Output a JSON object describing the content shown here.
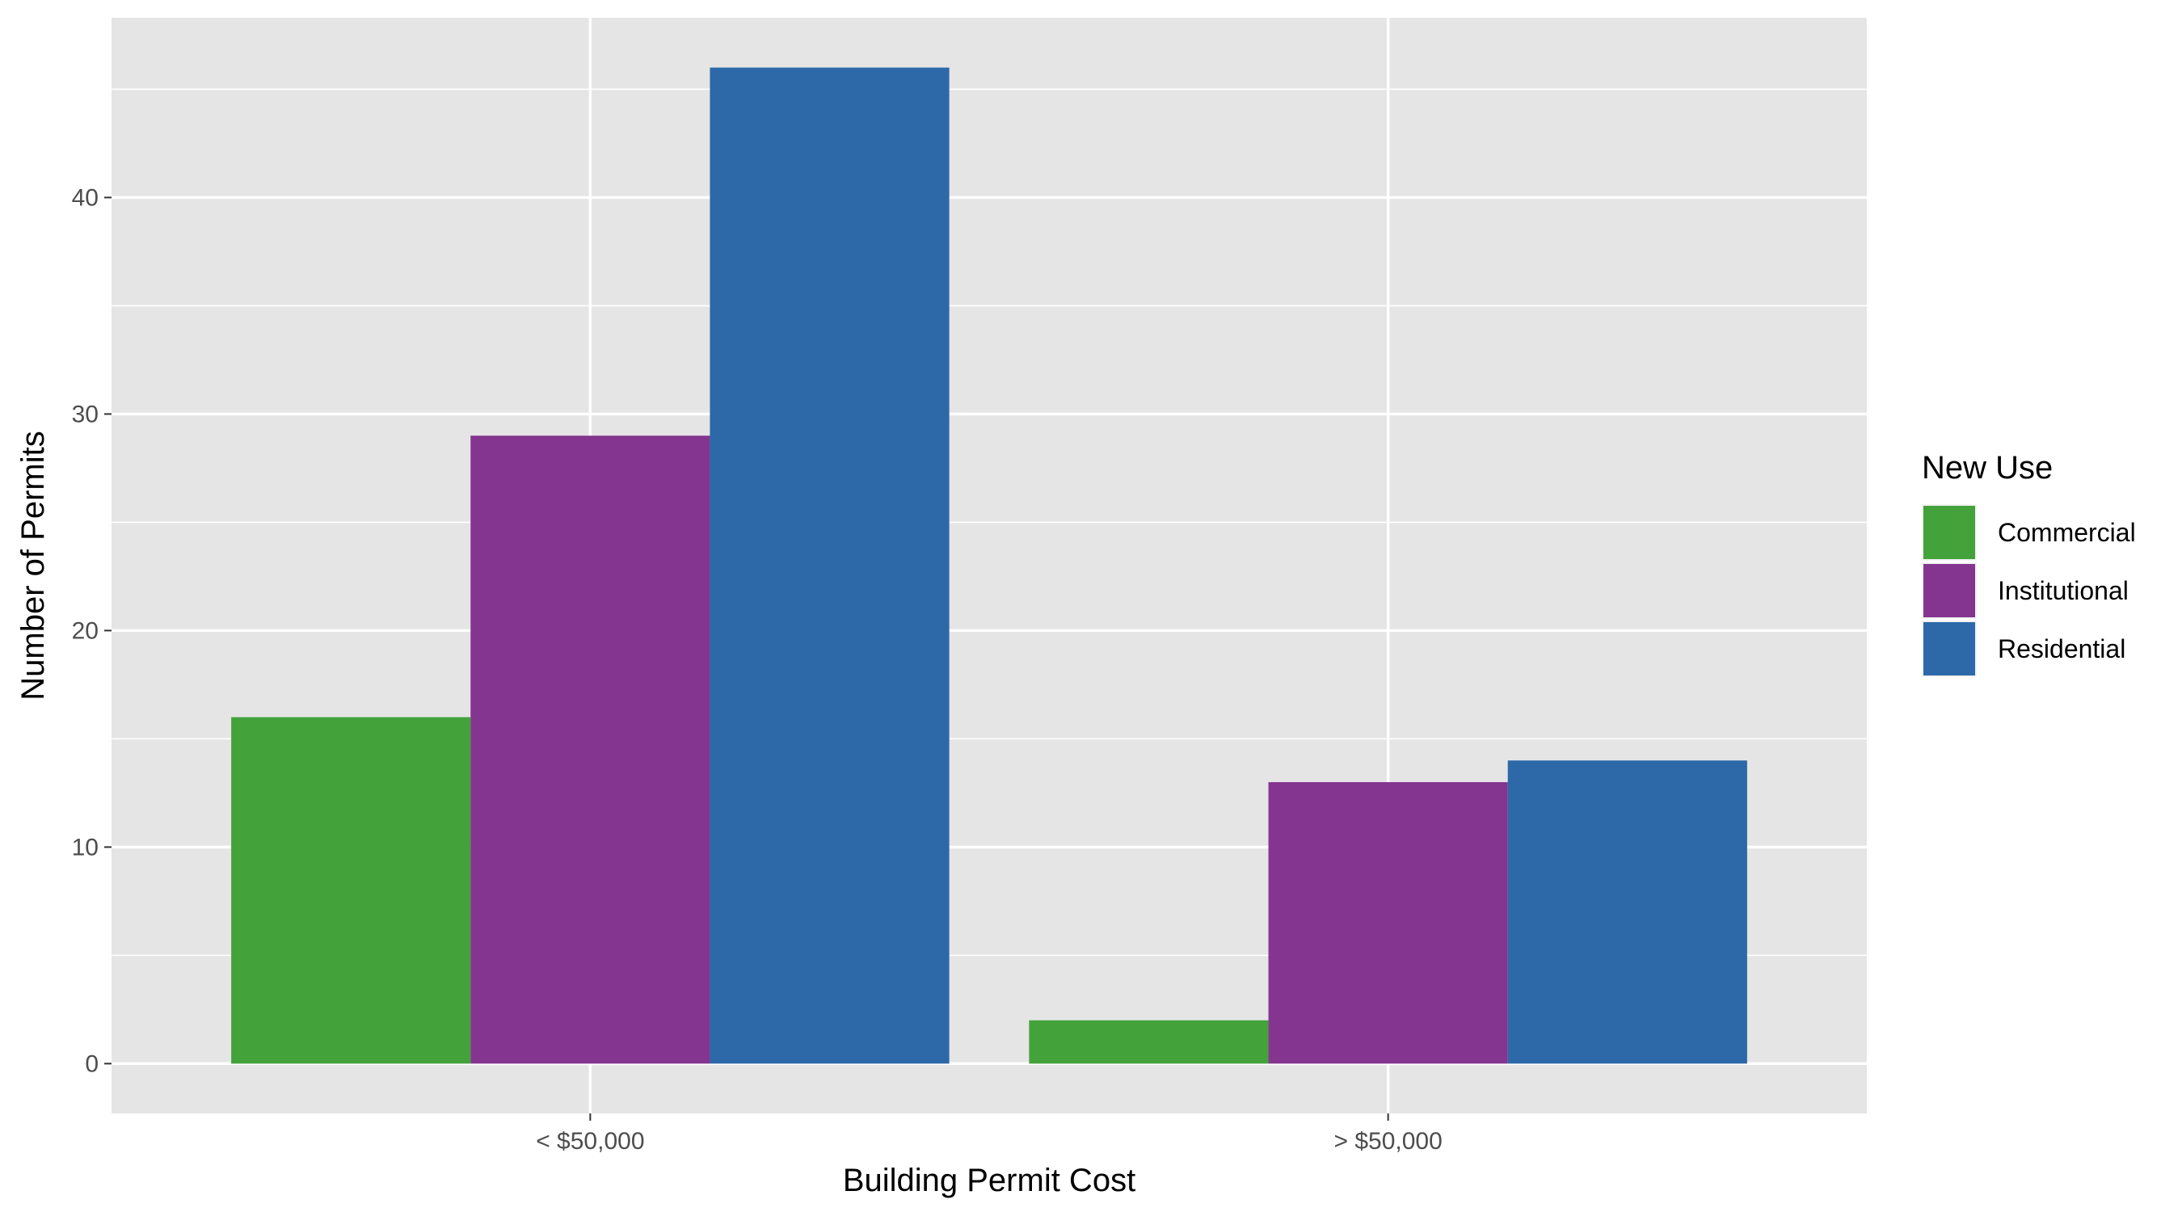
{
  "chart_data": {
    "type": "bar",
    "categories": [
      "< $50,000",
      "> $50,000"
    ],
    "series": [
      {
        "name": "Commercial",
        "values": [
          16,
          2
        ],
        "color": "#43a23a"
      },
      {
        "name": "Institutional",
        "values": [
          29,
          13
        ],
        "color": "#84358f"
      },
      {
        "name": "Residential",
        "values": [
          46,
          14
        ],
        "color": "#2d69a8"
      }
    ],
    "xlabel": "Building Permit Cost",
    "ylabel": "Number of Permits",
    "yticks": [
      0,
      10,
      20,
      30,
      40
    ],
    "ylim": [
      -2.3,
      48.3
    ],
    "grid": true,
    "legend": {
      "title": "New Use",
      "position": "right"
    },
    "colors": {
      "panel": "#e5e5e5",
      "grid": "#ffffff",
      "tick_text": "#4d4d4d"
    }
  }
}
